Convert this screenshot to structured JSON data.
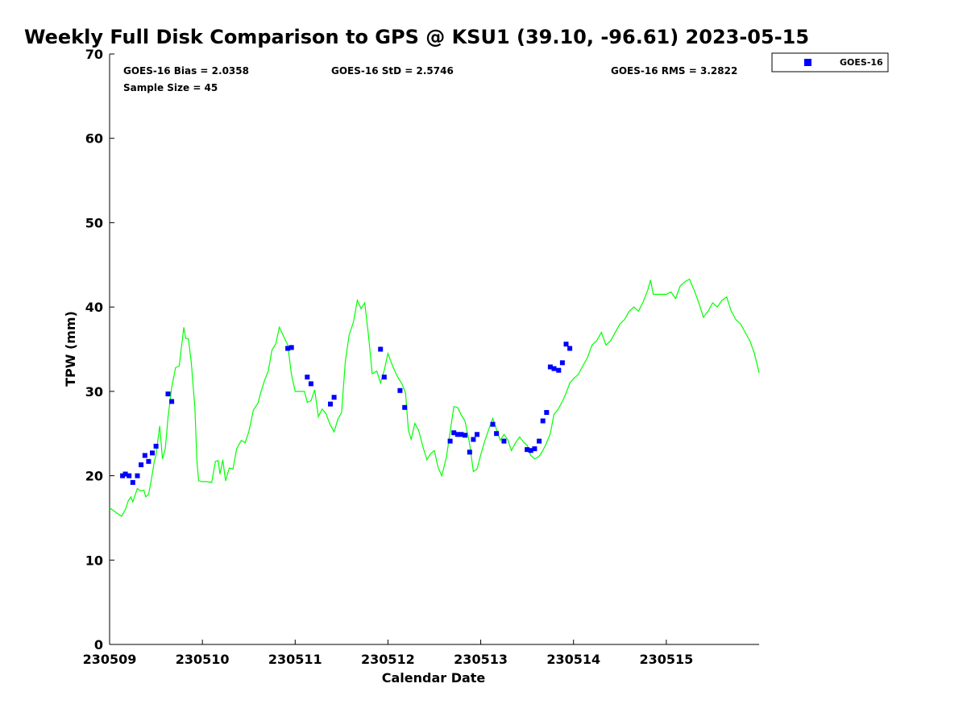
{
  "chart_data": {
    "type": "scatter",
    "title": "Weekly Full Disk Comparison to GPS @ KSU1 (39.10, -96.61) 2023-05-15",
    "xlabel": "Calendar Date",
    "ylabel": "TPW (mm)",
    "xlim": [
      230509,
      230516
    ],
    "ylim": [
      0,
      70
    ],
    "x_tick_labels": [
      "230509",
      "230510",
      "230511",
      "230512",
      "230513",
      "230514",
      "230515"
    ],
    "y_ticks": [
      0,
      10,
      20,
      30,
      40,
      50,
      60,
      70
    ],
    "grid": false,
    "legend_position": "top-right",
    "stats": {
      "bias": "GOES-16 Bias = 2.0358",
      "std": "GOES-16 StD = 2.5746",
      "rms": "GOES-16 RMS = 3.2822",
      "sample_size": "Sample Size = 45"
    },
    "series": [
      {
        "name": "GOES-16",
        "kind": "scatter",
        "marker": "square",
        "color": "#0000ff",
        "points": [
          [
            230509.14,
            20.0
          ],
          [
            230509.17,
            20.2
          ],
          [
            230509.21,
            20.0
          ],
          [
            230509.25,
            19.2
          ],
          [
            230509.3,
            20.0
          ],
          [
            230509.34,
            21.3
          ],
          [
            230509.38,
            22.4
          ],
          [
            230509.42,
            21.7
          ],
          [
            230509.46,
            22.7
          ],
          [
            230509.5,
            23.5
          ],
          [
            230509.63,
            29.7
          ],
          [
            230509.67,
            28.8
          ],
          [
            230510.92,
            35.1
          ],
          [
            230510.96,
            35.2
          ],
          [
            230511.13,
            31.7
          ],
          [
            230511.17,
            30.9
          ],
          [
            230511.38,
            28.5
          ],
          [
            230511.42,
            29.3
          ],
          [
            230511.92,
            35.0
          ],
          [
            230511.96,
            31.7
          ],
          [
            230512.13,
            30.1
          ],
          [
            230512.18,
            28.1
          ],
          [
            230512.67,
            24.1
          ],
          [
            230512.71,
            25.1
          ],
          [
            230512.75,
            24.9
          ],
          [
            230512.79,
            24.9
          ],
          [
            230512.83,
            24.8
          ],
          [
            230512.88,
            22.8
          ],
          [
            230512.92,
            24.3
          ],
          [
            230512.96,
            24.9
          ],
          [
            230513.13,
            26.1
          ],
          [
            230513.17,
            25.0
          ],
          [
            230513.25,
            24.1
          ],
          [
            230513.5,
            23.1
          ],
          [
            230513.54,
            23.0
          ],
          [
            230513.58,
            23.2
          ],
          [
            230513.63,
            24.1
          ],
          [
            230513.67,
            26.5
          ],
          [
            230513.71,
            27.5
          ],
          [
            230513.75,
            32.9
          ],
          [
            230513.79,
            32.7
          ],
          [
            230513.84,
            32.5
          ],
          [
            230513.88,
            33.4
          ],
          [
            230513.92,
            35.6
          ],
          [
            230513.96,
            35.1
          ]
        ]
      },
      {
        "name": "",
        "kind": "line",
        "color": "#00ff00",
        "points": [
          [
            230509.0,
            16.2
          ],
          [
            230509.05,
            15.8
          ],
          [
            230509.1,
            15.4
          ],
          [
            230509.13,
            15.2
          ],
          [
            230509.17,
            16.0
          ],
          [
            230509.2,
            17.0
          ],
          [
            230509.23,
            17.5
          ],
          [
            230509.25,
            16.9
          ],
          [
            230509.3,
            18.5
          ],
          [
            230509.33,
            18.2
          ],
          [
            230509.37,
            18.3
          ],
          [
            230509.39,
            17.5
          ],
          [
            230509.42,
            17.8
          ],
          [
            230509.45,
            19.5
          ],
          [
            230509.48,
            21.6
          ],
          [
            230509.5,
            22.5
          ],
          [
            230509.54,
            25.9
          ],
          [
            230509.57,
            22.0
          ],
          [
            230509.6,
            23.2
          ],
          [
            230509.63,
            26.9
          ],
          [
            230509.67,
            30.5
          ],
          [
            230509.71,
            32.8
          ],
          [
            230509.75,
            33.0
          ],
          [
            230509.8,
            37.6
          ],
          [
            230509.82,
            36.3
          ],
          [
            230509.85,
            36.2
          ],
          [
            230509.88,
            33.5
          ],
          [
            230509.92,
            28.0
          ],
          [
            230509.94,
            22.0
          ],
          [
            230509.96,
            19.4
          ],
          [
            230510.0,
            19.3
          ],
          [
            230510.05,
            19.3
          ],
          [
            230510.1,
            19.2
          ],
          [
            230510.14,
            21.7
          ],
          [
            230510.17,
            21.8
          ],
          [
            230510.19,
            20.2
          ],
          [
            230510.22,
            21.9
          ],
          [
            230510.25,
            19.4
          ],
          [
            230510.29,
            20.9
          ],
          [
            230510.33,
            20.8
          ],
          [
            230510.37,
            23.2
          ],
          [
            230510.42,
            24.2
          ],
          [
            230510.46,
            23.9
          ],
          [
            230510.5,
            25.2
          ],
          [
            230510.55,
            27.8
          ],
          [
            230510.6,
            28.6
          ],
          [
            230510.63,
            29.9
          ],
          [
            230510.67,
            31.3
          ],
          [
            230510.71,
            32.4
          ],
          [
            230510.75,
            34.9
          ],
          [
            230510.79,
            35.6
          ],
          [
            230510.83,
            37.6
          ],
          [
            230510.88,
            36.4
          ],
          [
            230510.92,
            35.5
          ],
          [
            230510.96,
            32.0
          ],
          [
            230511.0,
            30.0
          ],
          [
            230511.05,
            30.0
          ],
          [
            230511.1,
            30.0
          ],
          [
            230511.13,
            28.7
          ],
          [
            230511.17,
            28.9
          ],
          [
            230511.21,
            30.2
          ],
          [
            230511.25,
            27.0
          ],
          [
            230511.29,
            27.9
          ],
          [
            230511.33,
            27.4
          ],
          [
            230511.38,
            26.0
          ],
          [
            230511.42,
            25.2
          ],
          [
            230511.46,
            26.7
          ],
          [
            230511.5,
            27.5
          ],
          [
            230511.54,
            33.5
          ],
          [
            230511.58,
            36.6
          ],
          [
            230511.63,
            38.3
          ],
          [
            230511.67,
            40.8
          ],
          [
            230511.71,
            39.8
          ],
          [
            230511.75,
            40.5
          ],
          [
            230511.79,
            36.7
          ],
          [
            230511.83,
            32.1
          ],
          [
            230511.88,
            32.4
          ],
          [
            230511.92,
            31.0
          ],
          [
            230511.96,
            32.5
          ],
          [
            230512.0,
            34.5
          ],
          [
            230512.05,
            33.0
          ],
          [
            230512.1,
            31.8
          ],
          [
            230512.15,
            30.9
          ],
          [
            230512.19,
            29.8
          ],
          [
            230512.22,
            25.4
          ],
          [
            230512.25,
            24.3
          ],
          [
            230512.29,
            26.2
          ],
          [
            230512.33,
            25.4
          ],
          [
            230512.38,
            23.3
          ],
          [
            230512.42,
            21.9
          ],
          [
            230512.46,
            22.6
          ],
          [
            230512.5,
            23.0
          ],
          [
            230512.54,
            21.0
          ],
          [
            230512.58,
            20.0
          ],
          [
            230512.63,
            22.2
          ],
          [
            230512.67,
            25.2
          ],
          [
            230512.71,
            28.2
          ],
          [
            230512.75,
            28.1
          ],
          [
            230512.79,
            27.2
          ],
          [
            230512.83,
            26.5
          ],
          [
            230512.88,
            23.8
          ],
          [
            230512.92,
            20.5
          ],
          [
            230512.96,
            20.8
          ],
          [
            230513.0,
            22.5
          ],
          [
            230513.04,
            24.0
          ],
          [
            230513.08,
            25.3
          ],
          [
            230513.13,
            26.8
          ],
          [
            230513.17,
            25.5
          ],
          [
            230513.21,
            24.2
          ],
          [
            230513.25,
            24.9
          ],
          [
            230513.29,
            24.3
          ],
          [
            230513.33,
            23.0
          ],
          [
            230513.38,
            24.0
          ],
          [
            230513.42,
            24.6
          ],
          [
            230513.46,
            24.0
          ],
          [
            230513.5,
            23.6
          ],
          [
            230513.54,
            22.4
          ],
          [
            230513.58,
            22.0
          ],
          [
            230513.63,
            22.3
          ],
          [
            230513.67,
            23.0
          ],
          [
            230513.71,
            23.9
          ],
          [
            230513.75,
            25.0
          ],
          [
            230513.79,
            27.3
          ],
          [
            230513.83,
            27.8
          ],
          [
            230513.88,
            28.8
          ],
          [
            230513.92,
            29.8
          ],
          [
            230513.96,
            31.0
          ],
          [
            230514.0,
            31.5
          ],
          [
            230514.05,
            32.0
          ],
          [
            230514.1,
            33.0
          ],
          [
            230514.15,
            34.0
          ],
          [
            230514.2,
            35.5
          ],
          [
            230514.25,
            36.0
          ],
          [
            230514.3,
            37.0
          ],
          [
            230514.35,
            35.5
          ],
          [
            230514.4,
            36.0
          ],
          [
            230514.45,
            37.0
          ],
          [
            230514.5,
            38.0
          ],
          [
            230514.55,
            38.5
          ],
          [
            230514.6,
            39.5
          ],
          [
            230514.65,
            40.0
          ],
          [
            230514.7,
            39.5
          ],
          [
            230514.75,
            40.6
          ],
          [
            230514.8,
            42.0
          ],
          [
            230514.83,
            43.2
          ],
          [
            230514.86,
            41.5
          ],
          [
            230514.9,
            41.5
          ],
          [
            230514.95,
            41.5
          ],
          [
            230515.0,
            41.5
          ],
          [
            230515.05,
            41.8
          ],
          [
            230515.1,
            41.0
          ],
          [
            230515.15,
            42.5
          ],
          [
            230515.2,
            43.0
          ],
          [
            230515.25,
            43.3
          ],
          [
            230515.3,
            42.0
          ],
          [
            230515.35,
            40.5
          ],
          [
            230515.4,
            38.8
          ],
          [
            230515.45,
            39.5
          ],
          [
            230515.5,
            40.5
          ],
          [
            230515.55,
            40.0
          ],
          [
            230515.6,
            40.8
          ],
          [
            230515.65,
            41.2
          ],
          [
            230515.7,
            39.5
          ],
          [
            230515.75,
            38.5
          ],
          [
            230515.8,
            38.0
          ],
          [
            230515.85,
            37.0
          ],
          [
            230515.9,
            36.0
          ],
          [
            230515.95,
            34.5
          ],
          [
            230516.0,
            32.2
          ]
        ]
      }
    ]
  }
}
